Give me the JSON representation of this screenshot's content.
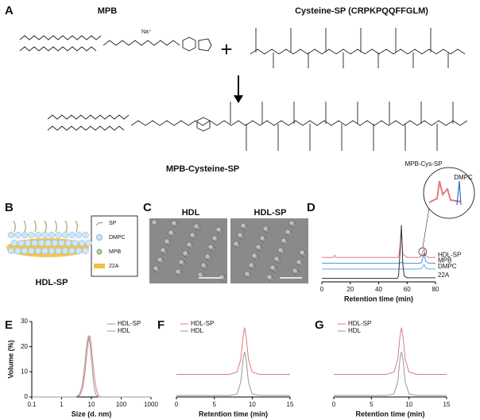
{
  "panels": {
    "A": {
      "label": "A",
      "reactant1": "MPB",
      "counterion": "Na⁺",
      "reactant2": "Cysteine-SP (CRPKPQQFFGLM)",
      "plus": "+",
      "product": "MPB-Cysteine-SP"
    },
    "B": {
      "label": "B",
      "legend": [
        "SP",
        "DMPC",
        "MPB",
        "22A"
      ],
      "caption": "HDL-SP"
    },
    "C": {
      "label": "C",
      "images": [
        "HDL",
        "HDL-SP"
      ]
    }
  },
  "chart_data": [
    {
      "type": "line",
      "panel_label": "D",
      "xlabel": "Retention time (min)",
      "xlim": [
        0,
        80
      ],
      "xticks": [
        0,
        20,
        40,
        60,
        80
      ],
      "ylim": [
        0,
        100
      ],
      "annotations": [
        "MPB-Cys-SP",
        "DMPC"
      ],
      "series": [
        {
          "name": "HDL-SP",
          "color": "#e07a7a",
          "x": [
            0,
            8,
            9,
            10,
            50,
            54,
            55,
            56,
            57,
            60,
            68,
            70,
            71,
            72,
            73,
            75,
            80
          ],
          "values": [
            42,
            42,
            46,
            42,
            42,
            42,
            60,
            90,
            48,
            42,
            42,
            44,
            52,
            56,
            46,
            42,
            42
          ]
        },
        {
          "name": "MPB",
          "color": "#4a8fd6",
          "x": [
            0,
            55,
            56,
            57,
            68,
            70,
            71,
            72,
            73,
            75,
            80
          ],
          "values": [
            32,
            32,
            34,
            32,
            32,
            33,
            40,
            50,
            36,
            32,
            32
          ]
        },
        {
          "name": "DMPC",
          "color": "#6aa6e0",
          "x": [
            0,
            68,
            70,
            71,
            72,
            73,
            75,
            80
          ],
          "values": [
            22,
            22,
            23,
            26,
            30,
            24,
            22,
            22
          ]
        },
        {
          "name": "22A",
          "color": "#333333",
          "x": [
            0,
            53,
            54,
            55,
            56,
            57,
            58,
            60,
            80
          ],
          "values": [
            6,
            6,
            10,
            50,
            98,
            30,
            10,
            7,
            7
          ]
        }
      ]
    },
    {
      "type": "line",
      "panel_label": "E",
      "xlabel": "Size (d. nm)",
      "ylabel": "Volume (%)",
      "xscale": "log",
      "legend": "upper right",
      "xlim": [
        0.1,
        1000
      ],
      "xticks": [
        0.1,
        1,
        10,
        100,
        1000
      ],
      "ylim": [
        0,
        30
      ],
      "yticks": [
        0,
        10,
        20,
        30
      ],
      "series": [
        {
          "name": "HDL-SP",
          "color": "#e07a7a",
          "x": [
            0.1,
            3,
            4,
            5,
            6,
            7,
            8,
            9,
            10,
            12,
            14,
            17,
            20,
            1000
          ],
          "values": [
            0,
            0,
            0.5,
            3,
            9,
            17,
            23,
            24,
            20,
            10,
            4,
            0.5,
            0,
            0
          ]
        },
        {
          "name": "HDL",
          "color": "#999999",
          "x": [
            0.1,
            3,
            4,
            5,
            6,
            7,
            8,
            9,
            10,
            12,
            14,
            17,
            20,
            1000
          ],
          "values": [
            0,
            0,
            1,
            5,
            13,
            21,
            24.5,
            21,
            15,
            5,
            1,
            0,
            0,
            0
          ]
        }
      ]
    },
    {
      "type": "line",
      "panel_label": "F",
      "xlabel": "Retention time (min)",
      "legend": "upper left",
      "xlim": [
        0,
        15
      ],
      "xticks": [
        0,
        5,
        10,
        15
      ],
      "ylim": [
        0,
        100
      ],
      "series": [
        {
          "name": "HDL-SP",
          "color": "#e07a7a",
          "x": [
            0,
            7,
            8,
            8.5,
            8.8,
            9,
            9.2,
            9.5,
            10,
            11,
            15
          ],
          "values": [
            30,
            30,
            33,
            50,
            80,
            92,
            80,
            50,
            33,
            30,
            30
          ]
        },
        {
          "name": "HDL",
          "color": "#999999",
          "x": [
            0,
            7,
            8,
            8.5,
            8.8,
            9,
            9.2,
            9.5,
            10,
            11,
            15
          ],
          "values": [
            2,
            2,
            4,
            20,
            50,
            60,
            50,
            20,
            4,
            2,
            2
          ]
        }
      ]
    },
    {
      "type": "line",
      "panel_label": "G",
      "xlabel": "Retention time (min)",
      "legend": "upper left",
      "xlim": [
        0,
        15
      ],
      "xticks": [
        0,
        5,
        10,
        15
      ],
      "ylim": [
        0,
        100
      ],
      "series": [
        {
          "name": "HDL-SP",
          "color": "#e07a7a",
          "x": [
            0,
            7,
            8,
            8.5,
            8.8,
            9,
            9.2,
            9.5,
            10,
            11,
            15
          ],
          "values": [
            30,
            30,
            33,
            50,
            80,
            92,
            80,
            50,
            33,
            30,
            30
          ]
        },
        {
          "name": "HDL",
          "color": "#999999",
          "x": [
            0,
            7,
            8,
            8.5,
            8.8,
            9,
            9.2,
            9.5,
            10,
            11,
            15
          ],
          "values": [
            2,
            2,
            4,
            20,
            50,
            60,
            50,
            20,
            4,
            2,
            2
          ]
        }
      ]
    }
  ]
}
